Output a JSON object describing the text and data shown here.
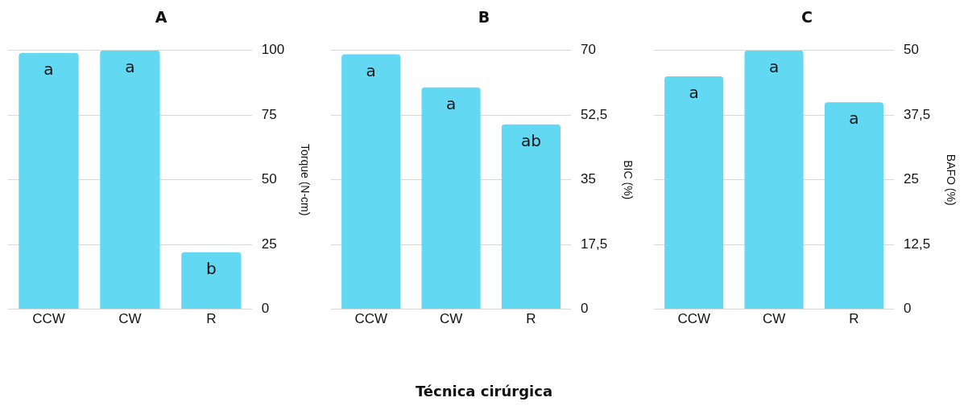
{
  "chart_data": [
    {
      "type": "bar",
      "title": "A",
      "ylabel": "Torque (N-cm)",
      "categories": [
        "CCW",
        "CW",
        "R"
      ],
      "values": [
        99,
        100,
        22
      ],
      "color": "#62d8f2",
      "ylim": [
        0,
        100
      ],
      "yticks": [
        0,
        25,
        50,
        75,
        100
      ],
      "grid": "y",
      "annotations": [
        {
          "text": "a",
          "x": "CCW",
          "y": 99
        },
        {
          "text": "a",
          "x": "CW",
          "y": 100
        },
        {
          "text": "b",
          "x": "R",
          "y": 22
        }
      ]
    },
    {
      "type": "bar",
      "title": "B",
      "ylabel": "BIC (%)",
      "xlabel": "Técnica cirúrgica",
      "categories": [
        "CCW",
        "CW",
        "R"
      ],
      "values": [
        69,
        60,
        50
      ],
      "color": "#62d8f2",
      "ylim": [
        0,
        70
      ],
      "yticks": [
        0,
        {
          "value": 17.5,
          "label": "17,5"
        },
        35,
        {
          "value": 52.5,
          "label": "52,5"
        },
        70
      ],
      "grid": "y",
      "annotations": [
        {
          "text": "a",
          "x": "CCW",
          "y": 69
        },
        {
          "text": "a",
          "x": "CW",
          "y": 60
        },
        {
          "text": "ab",
          "x": "R",
          "y": 50
        }
      ]
    },
    {
      "type": "bar",
      "title": "C",
      "ylabel": "BAFO (%)",
      "categories": [
        "CCW",
        "CW",
        "R"
      ],
      "values": [
        45,
        50,
        40
      ],
      "color": "#62d8f2",
      "ylim": [
        0,
        50
      ],
      "yticks": [
        0,
        {
          "value": 12.5,
          "label": "12,5"
        },
        25,
        {
          "value": 37.5,
          "label": "37,5"
        },
        50
      ],
      "grid": "y",
      "annotations": [
        {
          "text": "a",
          "x": "CCW",
          "y": 45
        },
        {
          "text": "a",
          "x": "CW",
          "y": 50
        },
        {
          "text": "a",
          "x": "R",
          "y": 40
        }
      ]
    }
  ]
}
